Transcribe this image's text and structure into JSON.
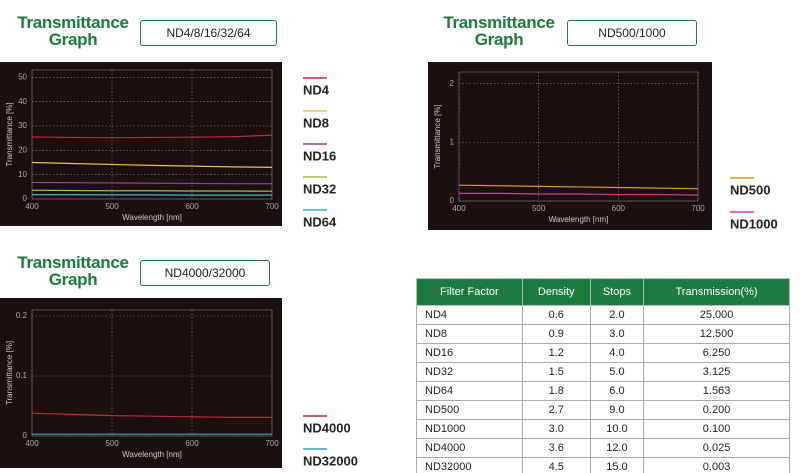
{
  "chart_data": [
    {
      "type": "line",
      "title": "Transmittance Graph",
      "subtitle": "ND4/8/16/32/64",
      "x_label": "Wavelength [nm]",
      "y_label": "Transmittance [%]",
      "x": [
        400,
        450,
        500,
        550,
        600,
        650,
        700
      ],
      "xlim": [
        400,
        700
      ],
      "xticks": [
        400,
        500,
        600,
        700
      ],
      "ylim": [
        0,
        53
      ],
      "yticks": [
        0,
        10,
        20,
        30,
        40,
        50
      ],
      "grid": true,
      "series": [
        {
          "name": "ND4",
          "color": "#c8283c",
          "values": [
            25.5,
            25.3,
            25.2,
            25.3,
            25.4,
            25.6,
            26.2
          ]
        },
        {
          "name": "ND8",
          "color": "#e8c44a",
          "values": [
            15,
            14.6,
            14.2,
            13.8,
            13.5,
            13.2,
            13
          ]
        },
        {
          "name": "ND16",
          "color": "#a03c96",
          "values": [
            6.8,
            6.7,
            6.6,
            6.5,
            6.4,
            6.3,
            6.3
          ]
        },
        {
          "name": "ND32",
          "color": "#a8c040",
          "values": [
            3.6,
            3.5,
            3.4,
            3.4,
            3.3,
            3.3,
            3.2
          ]
        },
        {
          "name": "ND64",
          "color": "#3cb4d0",
          "values": [
            1.8,
            1.8,
            1.7,
            1.7,
            1.6,
            1.6,
            1.6
          ]
        }
      ]
    },
    {
      "type": "line",
      "title": "Transmittance Graph",
      "subtitle": "ND500/1000",
      "x_label": "Wavelength [nm]",
      "y_label": "Transmittance [%]",
      "x": [
        400,
        450,
        500,
        550,
        600,
        650,
        700
      ],
      "xlim": [
        400,
        700
      ],
      "xticks": [
        400,
        500,
        600,
        700
      ],
      "ylim": [
        0,
        2.2
      ],
      "yticks": [
        0,
        1,
        2
      ],
      "grid": true,
      "series": [
        {
          "name": "ND500",
          "color": "#e0962c",
          "values": [
            0.27,
            0.26,
            0.25,
            0.24,
            0.23,
            0.22,
            0.21
          ]
        },
        {
          "name": "ND1000",
          "color": "#d23c96",
          "values": [
            0.13,
            0.13,
            0.12,
            0.12,
            0.11,
            0.11,
            0.1
          ]
        }
      ]
    },
    {
      "type": "line",
      "title": "Transmittance Graph",
      "subtitle": "ND4000/32000",
      "x_label": "Wavelength [nm]",
      "y_label": "Transmittance [%]",
      "x": [
        400,
        450,
        500,
        550,
        600,
        650,
        700
      ],
      "xlim": [
        400,
        700
      ],
      "xticks": [
        400,
        500,
        600,
        700
      ],
      "ylim": [
        0,
        0.21
      ],
      "yticks": [
        0,
        0.1,
        0.2
      ],
      "grid": true,
      "series": [
        {
          "name": "ND4000",
          "color": "#c0283c",
          "values": [
            0.038,
            0.036,
            0.034,
            0.033,
            0.032,
            0.031,
            0.031
          ]
        },
        {
          "name": "ND32000",
          "color": "#30a8b8",
          "values": [
            0.003,
            0.003,
            0.003,
            0.003,
            0.003,
            0.003,
            0.003
          ]
        }
      ]
    }
  ],
  "table": {
    "header": [
      "Filter Factor",
      "Density",
      "Stops",
      "Transmission(%)"
    ],
    "rows": [
      [
        "ND4",
        "0.6",
        "2.0",
        "25.000"
      ],
      [
        "ND8",
        "0.9",
        "3.0",
        "12.500"
      ],
      [
        "ND16",
        "1.2",
        "4.0",
        "6.250"
      ],
      [
        "ND32",
        "1.5",
        "5.0",
        "3.125"
      ],
      [
        "ND64",
        "1.8",
        "6.0",
        "1.563"
      ],
      [
        "ND500",
        "2.7",
        "9.0",
        "0.200"
      ],
      [
        "ND1000",
        "3.0",
        "10.0",
        "0.100"
      ],
      [
        "ND4000",
        "3.6",
        "12.0",
        "0.025"
      ],
      [
        "ND32000",
        "4.5",
        "15.0",
        "0.003"
      ]
    ]
  }
}
